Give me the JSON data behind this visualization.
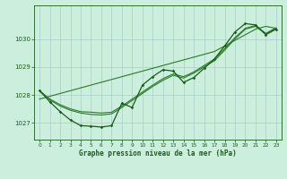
{
  "title": "Graphe pression niveau de la mer (hPa)",
  "bg_color": "#cceedd",
  "grid_color": "#aacccc",
  "line_color_dark": "#1a5c1a",
  "line_color_mid": "#2a7a2a",
  "xlim": [
    -0.5,
    23.5
  ],
  "ylim": [
    1026.4,
    1031.2
  ],
  "yticks": [
    1027,
    1028,
    1029,
    1030
  ],
  "xticks": [
    0,
    1,
    2,
    3,
    4,
    5,
    6,
    7,
    8,
    9,
    10,
    11,
    12,
    13,
    14,
    15,
    16,
    17,
    18,
    19,
    20,
    21,
    22,
    23
  ],
  "series_detail": [
    1028.15,
    1027.75,
    1027.4,
    1027.1,
    1026.9,
    1026.88,
    1026.85,
    1026.9,
    1027.7,
    1027.55,
    1028.35,
    1028.65,
    1028.9,
    1028.85,
    1028.45,
    1028.62,
    1028.95,
    1029.28,
    1029.75,
    1030.25,
    1030.55,
    1030.5,
    1030.15,
    1030.35
  ],
  "series_smooth1": [
    1028.15,
    1027.82,
    1027.6,
    1027.45,
    1027.35,
    1027.3,
    1027.28,
    1027.32,
    1027.55,
    1027.8,
    1028.05,
    1028.3,
    1028.52,
    1028.7,
    1028.6,
    1028.78,
    1029.0,
    1029.22,
    1029.6,
    1030.0,
    1030.35,
    1030.45,
    1030.18,
    1030.38
  ],
  "series_smooth2": [
    1028.15,
    1027.85,
    1027.65,
    1027.5,
    1027.4,
    1027.38,
    1027.35,
    1027.38,
    1027.6,
    1027.85,
    1028.1,
    1028.35,
    1028.58,
    1028.75,
    1028.65,
    1028.82,
    1029.05,
    1029.28,
    1029.65,
    1030.05,
    1030.38,
    1030.48,
    1030.2,
    1030.4
  ],
  "series_linear": [
    1027.85,
    1027.95,
    1028.05,
    1028.15,
    1028.25,
    1028.35,
    1028.45,
    1028.55,
    1028.65,
    1028.75,
    1028.85,
    1028.95,
    1029.05,
    1029.15,
    1029.25,
    1029.35,
    1029.45,
    1029.55,
    1029.75,
    1029.95,
    1030.15,
    1030.35,
    1030.45,
    1030.38
  ]
}
